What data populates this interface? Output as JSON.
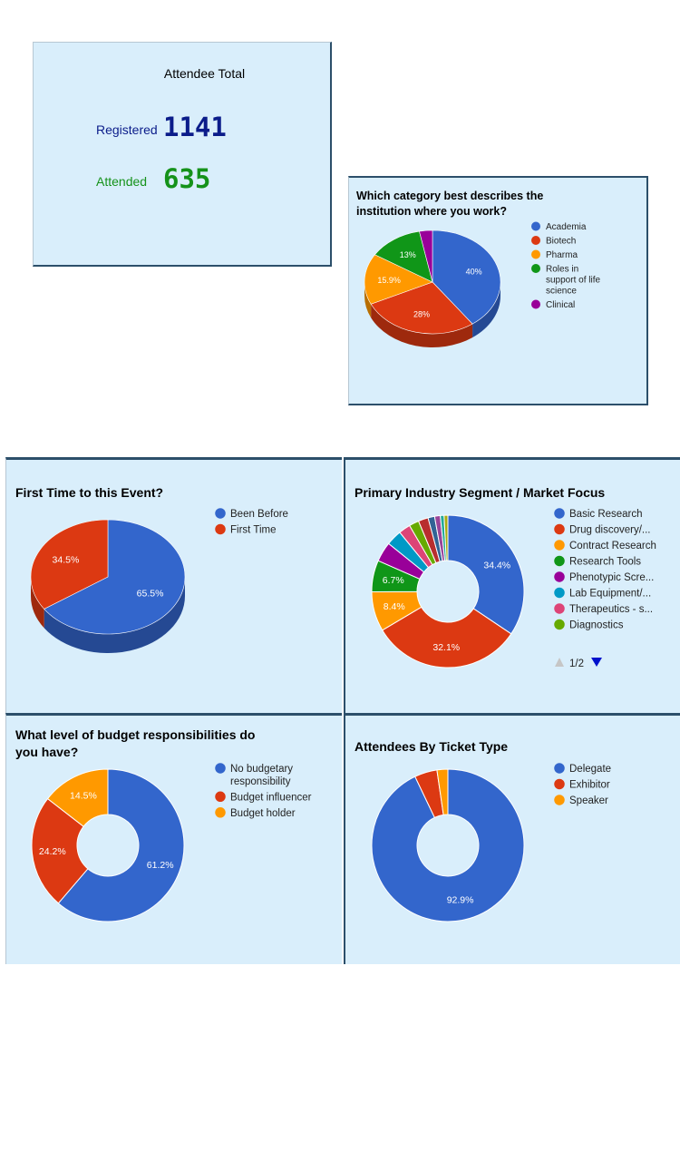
{
  "attendee_total": {
    "title": "Attendee Total",
    "registered_label": "Registered",
    "registered_value": "1141",
    "attended_label": "Attended",
    "attended_value": "635",
    "registered_color": "#0b1c8a",
    "attended_color": "#15921a"
  },
  "colors": {
    "blue": "#3366cc",
    "red": "#dc3912",
    "orange": "#ff9900",
    "green": "#109618",
    "purple": "#990099",
    "teal": "#0099c6",
    "pink": "#dd4477",
    "lime": "#66aa00",
    "panel_bg": "#d9eefb",
    "border": "#2c4f6a"
  },
  "pager": {
    "text": "1/2"
  },
  "chart_data": [
    {
      "id": "institution",
      "type": "pie",
      "style": "3d",
      "title": "Which category best describes the institution where you work?",
      "slices": [
        {
          "label": "Academia",
          "value": 40,
          "text": "40%"
        },
        {
          "label": "Biotech",
          "value": 28,
          "text": "28%"
        },
        {
          "label": "Pharma",
          "value": 15.9,
          "text": "15.9%"
        },
        {
          "label": "Roles in support of life science",
          "value": 13,
          "text": "13%"
        },
        {
          "label": "Clinical",
          "value": 3.1,
          "text": ""
        }
      ]
    },
    {
      "id": "first_time",
      "type": "pie",
      "style": "3d",
      "title": "First Time to this Event?",
      "slices": [
        {
          "label": "Been Before",
          "value": 65.5,
          "text": "65.5%"
        },
        {
          "label": "First Time",
          "value": 34.5,
          "text": "34.5%"
        }
      ]
    },
    {
      "id": "industry",
      "type": "pie",
      "style": "donut",
      "title": "Primary Industry Segment / Market Focus",
      "slices": [
        {
          "label": "Basic Research",
          "value": 34.4,
          "text": "34.4%"
        },
        {
          "label": "Drug discovery/...",
          "value": 32.1,
          "text": "32.1%"
        },
        {
          "label": "Contract Research",
          "value": 8.4,
          "text": "8.4%"
        },
        {
          "label": "Research Tools",
          "value": 6.7,
          "text": "6.7%"
        },
        {
          "label": "Phenotypic Scre...",
          "value": 4.2,
          "text": ""
        },
        {
          "label": "Lab Equipment/...",
          "value": 3.3,
          "text": ""
        },
        {
          "label": "Therapeutics - s...",
          "value": 2.5,
          "text": ""
        },
        {
          "label": "Diagnostics",
          "value": 2.1,
          "text": ""
        },
        {
          "label": "",
          "value": 2.1,
          "text": ""
        },
        {
          "label": "",
          "value": 1.4,
          "text": ""
        },
        {
          "label": "",
          "value": 1.2,
          "text": ""
        },
        {
          "label": "",
          "value": 0.8,
          "text": ""
        },
        {
          "label": "",
          "value": 0.8,
          "text": ""
        }
      ],
      "legend_visible_count": 8
    },
    {
      "id": "budget",
      "type": "pie",
      "style": "donut",
      "title": "What level of budget responsibilities do you have?",
      "slices": [
        {
          "label": "No budgetary responsibility",
          "value": 61.2,
          "text": "61.2%"
        },
        {
          "label": "Budget influencer",
          "value": 24.2,
          "text": "24.2%"
        },
        {
          "label": "Budget holder",
          "value": 14.5,
          "text": "14.5%"
        }
      ]
    },
    {
      "id": "ticket",
      "type": "pie",
      "style": "donut",
      "title": "Attendees By Ticket Type",
      "slices": [
        {
          "label": "Delegate",
          "value": 92.9,
          "text": "92.9%"
        },
        {
          "label": "Exhibitor",
          "value": 4.8,
          "text": ""
        },
        {
          "label": "Speaker",
          "value": 2.3,
          "text": ""
        }
      ]
    }
  ]
}
